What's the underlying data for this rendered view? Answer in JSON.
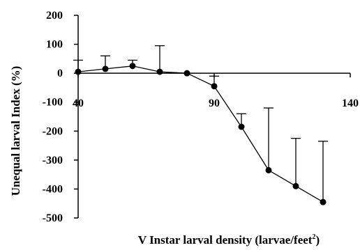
{
  "chart_data": {
    "type": "line",
    "title": "",
    "xlabel_main": "V Instar larval density (larvae/feet",
    "xlabel_sup": "2",
    "xlabel_end": ")",
    "ylabel": "Unequal larval Index (%)",
    "xlim": [
      40,
      140
    ],
    "ylim": [
      -500,
      200
    ],
    "x_ticks": [
      {
        "value": 40,
        "label": "40"
      },
      {
        "value": 90,
        "label": "90"
      },
      {
        "value": 140,
        "label": "140"
      }
    ],
    "y_ticks": [
      {
        "value": 200,
        "label": "200"
      },
      {
        "value": 100,
        "label": "100"
      },
      {
        "value": 0,
        "label": "0"
      },
      {
        "value": -100,
        "label": "-100"
      },
      {
        "value": -200,
        "label": "-200"
      },
      {
        "value": -300,
        "label": "-300"
      },
      {
        "value": -400,
        "label": "-400"
      },
      {
        "value": -500,
        "label": "-500"
      }
    ],
    "grid": false,
    "series": [
      {
        "color": "#000000",
        "x": [
          40,
          50,
          60,
          70,
          80,
          90,
          100,
          110,
          120,
          130
        ],
        "y": [
          5,
          15,
          25,
          5,
          0,
          -45,
          -185,
          -335,
          -390,
          -445
        ],
        "error_upper": [
          45,
          60,
          45,
          95,
          0,
          -10,
          -140,
          -120,
          -225,
          -235
        ]
      }
    ]
  }
}
